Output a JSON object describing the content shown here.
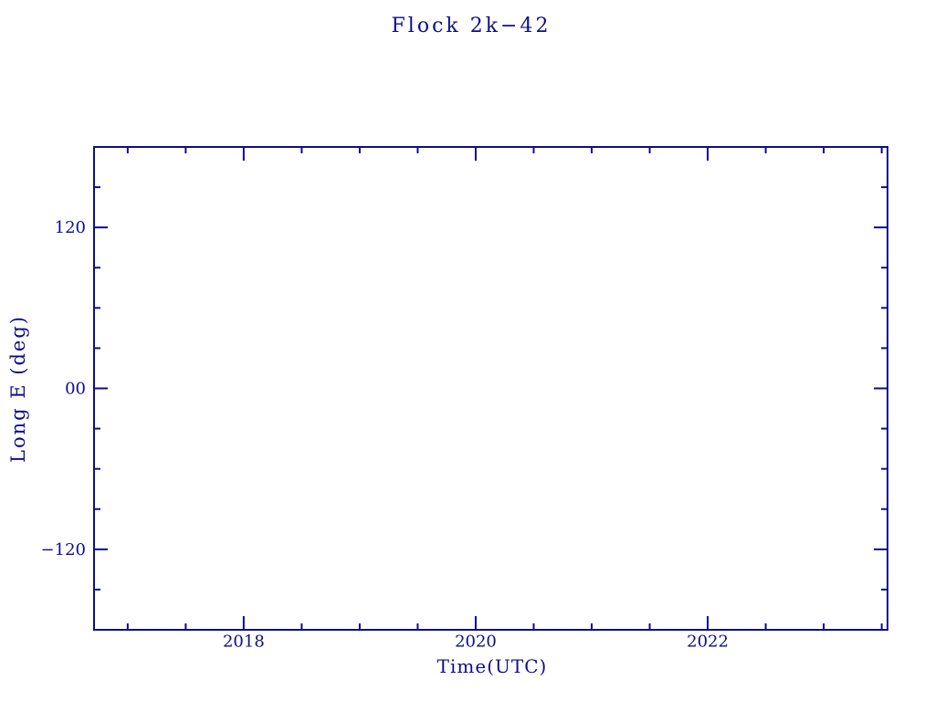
{
  "chart_data": {
    "type": "line",
    "title": "Flock 2k−42",
    "xlabel": "Time(UTC)",
    "ylabel": "Long E (deg)",
    "xlim": [
      2016.71,
      2023.55
    ],
    "ylim": [
      -180,
      180
    ],
    "x_ticks_major": [
      {
        "value": 2018,
        "label": "2018"
      },
      {
        "value": 2020,
        "label": "2020"
      },
      {
        "value": 2022,
        "label": "2022"
      }
    ],
    "x_ticks_minor": [
      2017,
      2017.5,
      2018.5,
      2019,
      2019.5,
      2020.5,
      2021,
      2021.5,
      2022.5,
      2023,
      2023.5
    ],
    "y_ticks_major": [
      {
        "value": 120,
        "label": "120"
      },
      {
        "value": 0,
        "label": "00"
      },
      {
        "value": -120,
        "label": "−120"
      }
    ],
    "y_ticks_minor": [
      150,
      90,
      60,
      30,
      -30,
      -60,
      -90,
      -150
    ],
    "series": [],
    "grid": false,
    "legend": null,
    "frame": "box",
    "tick_style": {
      "direction": "in",
      "major_len": 15,
      "minor_len": 7,
      "sides": [
        "top",
        "bottom",
        "left",
        "right"
      ]
    },
    "axis_color": "#0e0e87",
    "text_color": "#0e0e87",
    "background_color": "#ffffff"
  }
}
